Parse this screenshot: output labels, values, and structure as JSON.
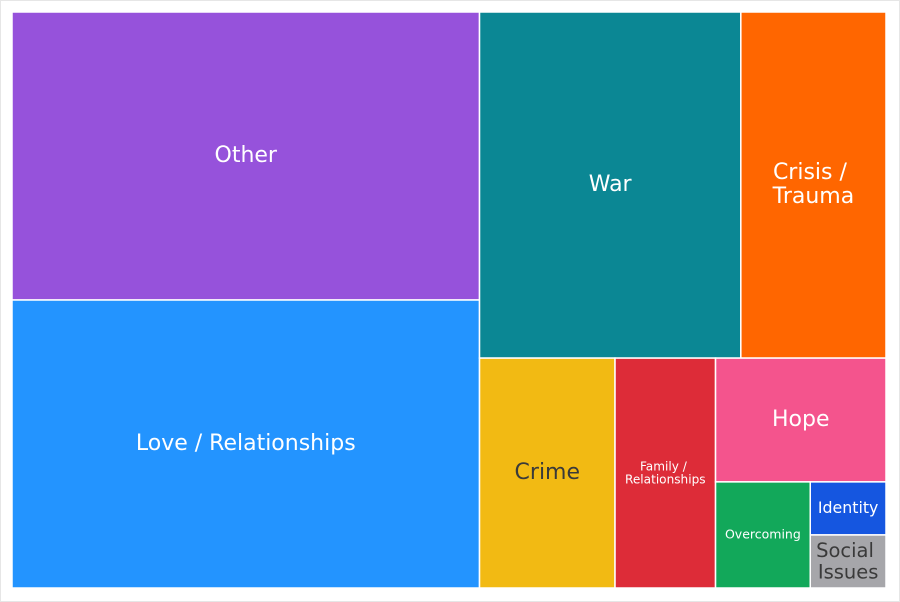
{
  "chart_data": {
    "type": "treemap",
    "labels": [
      "Other",
      "Love / Relationships",
      "War",
      "Crisis / Trauma",
      "Crime",
      "Family / Relationships",
      "Hope",
      "Overcoming",
      "Identity",
      "Social Issues"
    ],
    "values": [
      134,
      134,
      90,
      50,
      31,
      23,
      21,
      10,
      4,
      4
    ],
    "colors": [
      "#9652db",
      "#2394ff",
      "#0b8794",
      "#ff6600",
      "#f2ba13",
      "#dd2c38",
      "#f4548d",
      "#12a85a",
      "#1556e0",
      "#a6a6aa"
    ]
  }
}
